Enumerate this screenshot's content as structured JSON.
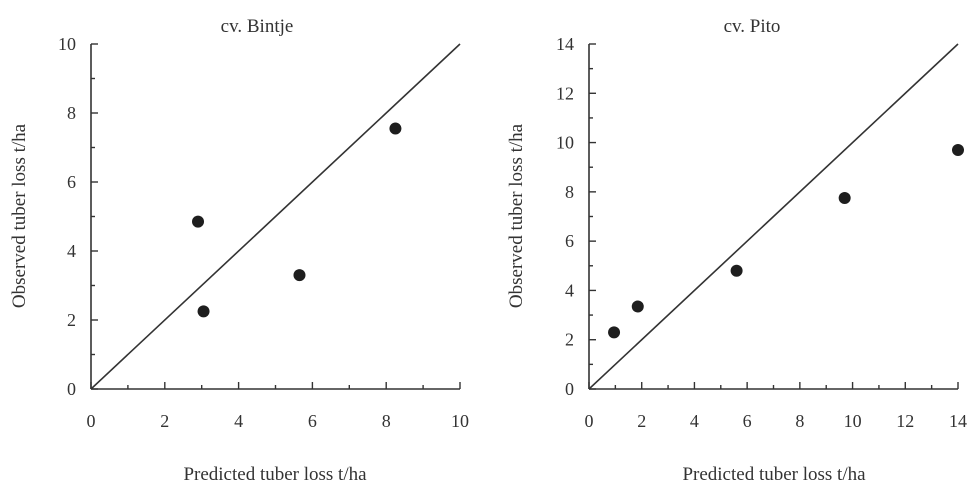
{
  "chart_data": [
    {
      "type": "scatter",
      "title": "cv. Bintje",
      "xlabel": "Predicted tuber loss t/ha",
      "ylabel": "Observed tuber loss t/ha",
      "xlim": [
        0,
        10
      ],
      "ylim": [
        0,
        10
      ],
      "xticks": [
        0,
        2,
        4,
        6,
        8,
        10
      ],
      "yticks": [
        0,
        2,
        4,
        6,
        8,
        10
      ],
      "minor_xticks": [
        1,
        3,
        5,
        7,
        9
      ],
      "minor_yticks": [
        1,
        3,
        5,
        7,
        9
      ],
      "reference_line": "1:1",
      "grid": false,
      "points": [
        {
          "x": 2.9,
          "y": 4.85
        },
        {
          "x": 3.05,
          "y": 2.25
        },
        {
          "x": 5.65,
          "y": 3.3
        },
        {
          "x": 8.25,
          "y": 7.55
        }
      ]
    },
    {
      "type": "scatter",
      "title": "cv. Pito",
      "xlabel": "Predicted tuber loss t/ha",
      "ylabel": "Observed tuber loss t/ha",
      "xlim": [
        0,
        14
      ],
      "ylim": [
        0,
        14
      ],
      "xticks": [
        0,
        2,
        4,
        6,
        8,
        10,
        12,
        14
      ],
      "yticks": [
        0,
        2,
        4,
        6,
        8,
        10,
        12,
        14
      ],
      "minor_xticks": [
        1,
        3,
        5,
        7,
        9,
        11,
        13
      ],
      "minor_yticks": [
        1,
        3,
        5,
        7,
        9,
        11,
        13
      ],
      "reference_line": "1:1",
      "grid": false,
      "points": [
        {
          "x": 0.95,
          "y": 2.3
        },
        {
          "x": 1.85,
          "y": 3.35
        },
        {
          "x": 5.6,
          "y": 4.8
        },
        {
          "x": 9.7,
          "y": 7.75
        },
        {
          "x": 14.0,
          "y": 9.7
        }
      ]
    }
  ]
}
